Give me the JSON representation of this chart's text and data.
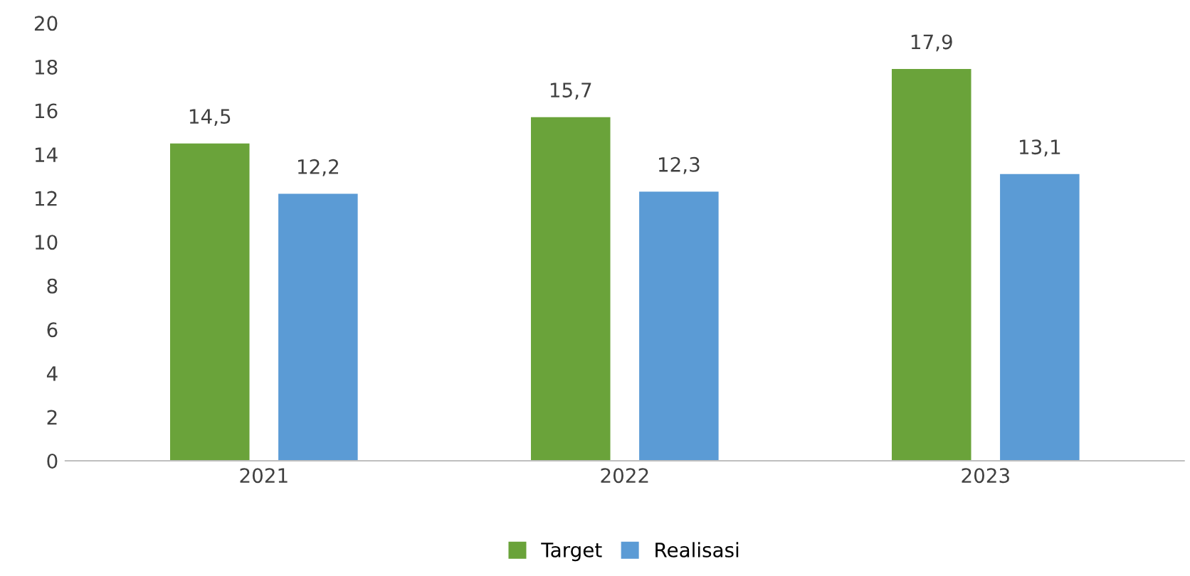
{
  "chart_data": {
    "type": "bar",
    "categories": [
      "2021",
      "2022",
      "2023"
    ],
    "series": [
      {
        "name": "Target",
        "color": "#6aa33a",
        "values": [
          14.5,
          15.7,
          17.9
        ],
        "value_labels": [
          "14,5",
          "15,7",
          "17,9"
        ]
      },
      {
        "name": "Realisasi",
        "color": "#5b9bd5",
        "values": [
          12.2,
          12.3,
          13.1
        ],
        "value_labels": [
          "12,2",
          "12,3",
          "13,1"
        ]
      }
    ],
    "ylim": [
      0,
      20
    ],
    "yticks": [
      0,
      2,
      4,
      6,
      8,
      10,
      12,
      14,
      16,
      18,
      20
    ],
    "grid": false,
    "legend": "bottom"
  }
}
